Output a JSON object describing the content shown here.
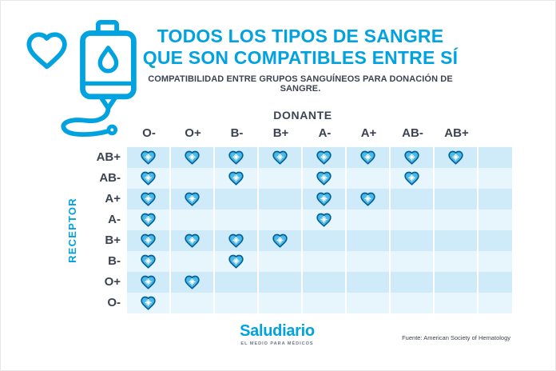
{
  "header": {
    "title_line1": "TODOS LOS TIPOS DE SANGRE",
    "title_line2": "QUE SON COMPATIBLES ENTRE SÍ",
    "subtitle": "COMPATIBILIDAD ENTRE GRUPOS SANGUÍNEOS PARA DONACIÓN DE SANGRE."
  },
  "chart_data": {
    "type": "heatmap",
    "title": "TODOS LOS TIPOS DE SANGRE QUE SON COMPATIBLES ENTRE SÍ",
    "x_label": "DONANTE",
    "y_label": "RECEPTOR",
    "columns": [
      "O-",
      "O+",
      "B-",
      "B+",
      "A-",
      "A+",
      "AB-",
      "AB+"
    ],
    "rows": [
      "AB+",
      "AB-",
      "A+",
      "A-",
      "B+",
      "B-",
      "O+",
      "O-"
    ],
    "values": [
      [
        1,
        1,
        1,
        1,
        1,
        1,
        1,
        1
      ],
      [
        1,
        0,
        1,
        0,
        1,
        0,
        1,
        0
      ],
      [
        1,
        1,
        0,
        0,
        1,
        1,
        0,
        0
      ],
      [
        1,
        0,
        0,
        0,
        1,
        0,
        0,
        0
      ],
      [
        1,
        1,
        1,
        1,
        0,
        0,
        0,
        0
      ],
      [
        1,
        0,
        1,
        0,
        0,
        0,
        0,
        0
      ],
      [
        1,
        1,
        0,
        0,
        0,
        0,
        0,
        0
      ],
      [
        1,
        0,
        0,
        0,
        0,
        0,
        0,
        0
      ]
    ],
    "value_meaning": "1 = compatible (heart icon shown), 0 = not compatible (empty cell)",
    "legend_position": "none",
    "grid": "striped rows with white column separators"
  },
  "footer": {
    "brand": "Saludiario",
    "brand_tagline": "EL MEDIO PARA MÉDICOS",
    "source": "Fuente: American Society of Hematology"
  },
  "colors": {
    "brand_blue": "#00a2e0",
    "text_dark": "#3d4350",
    "heart_fill": "#47b9eb",
    "heart_stroke": "#056193",
    "row_stripe_dark": "#cfeaf8",
    "row_stripe_light": "#e7f5fc"
  },
  "icons": {
    "logo": "blood-bag-heart-icon",
    "cell_marker": "heart-check-icon"
  }
}
